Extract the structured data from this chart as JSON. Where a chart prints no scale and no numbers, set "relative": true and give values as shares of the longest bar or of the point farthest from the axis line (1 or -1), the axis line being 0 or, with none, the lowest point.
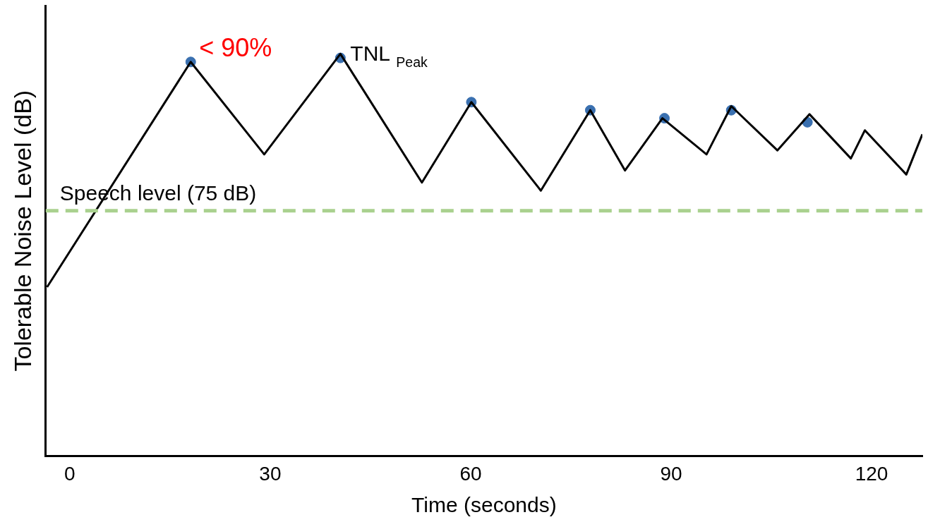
{
  "chart_data": {
    "type": "line",
    "xlabel": "Time (seconds)",
    "ylabel": "Tolerable Noise Level (dB)",
    "relative": true,
    "xlim": [
      -3.6,
      127.6
    ],
    "xticks": [
      0,
      30,
      60,
      90,
      120
    ],
    "grid": false,
    "legend": false,
    "series": [
      {
        "color": "#000000",
        "marker": "none",
        "line_style": "solid",
        "x": [
          -3.4,
          18.1,
          29.1,
          40.5,
          52.7,
          60.1,
          70.5,
          77.9,
          83.1,
          88.7,
          95.3,
          99.0,
          105.9,
          110.7,
          116.9,
          119.0,
          125.2,
          127.6
        ],
        "values": [
          0.42,
          0.98,
          0.75,
          1,
          0.68,
          0.88,
          0.66,
          0.86,
          0.71,
          0.84,
          0.75,
          0.87,
          0.76,
          0.85,
          0.74,
          0.81,
          0.7,
          0.8
        ]
      },
      {
        "type": "scatter",
        "color": "#3a70b0",
        "marker": "circle",
        "x": [
          18.1,
          40.5,
          60.1,
          77.9,
          89.0,
          99.0,
          110.4
        ],
        "values": [
          0.98,
          0.99,
          0.88,
          0.86,
          0.84,
          0.86,
          0.83
        ]
      }
    ],
    "ref_lines": [
      {
        "axis": "y",
        "value": 0.61,
        "label": "Speech level (75 dB)",
        "color": "#a9d18e",
        "line_style": "dashed"
      }
    ],
    "annotations": [
      {
        "text": "< 90%",
        "x": 18.1,
        "y": 0.98
      },
      {
        "text": "TNL $_{Peak}$",
        "x": 40.5,
        "y": 0.99
      }
    ]
  }
}
